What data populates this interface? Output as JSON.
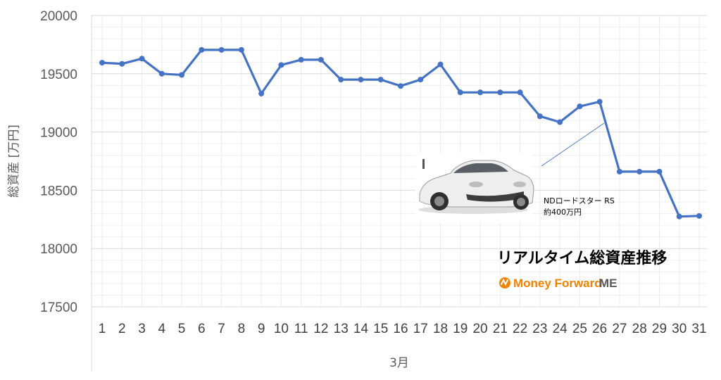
{
  "chart_data": {
    "type": "line",
    "xlabel": "3月",
    "ylabel": "総資産 [万円]",
    "ylim": [
      17500,
      20000
    ],
    "y_ticks": [
      "17500",
      "18000",
      "18500",
      "19000",
      "19500",
      "20000"
    ],
    "grid": true,
    "categories": [
      "1",
      "2",
      "3",
      "4",
      "5",
      "6",
      "7",
      "8",
      "9",
      "10",
      "11",
      "12",
      "13",
      "14",
      "15",
      "16",
      "17",
      "18",
      "19",
      "20",
      "21",
      "22",
      "23",
      "24",
      "25",
      "26",
      "27",
      "28",
      "29",
      "30",
      "31"
    ],
    "series": [
      {
        "values": [
          19595,
          19585,
          19630,
          19500,
          19490,
          19705,
          19705,
          19705,
          19330,
          19575,
          19620,
          19620,
          19450,
          19450,
          19450,
          19395,
          19450,
          19580,
          19340,
          19340,
          19340,
          19340,
          19135,
          19085,
          19220,
          19260,
          18660,
          18660,
          18660,
          18275,
          18280
        ],
        "color": "#4472C4"
      }
    ]
  },
  "annotation": {
    "car_name": "NDロードスター RS",
    "car_price": "約400万円",
    "title": "リアルタイム総資産推移",
    "brand": "Money Forward",
    "brand_suffix": "ME",
    "brand_color": "#F08300"
  }
}
